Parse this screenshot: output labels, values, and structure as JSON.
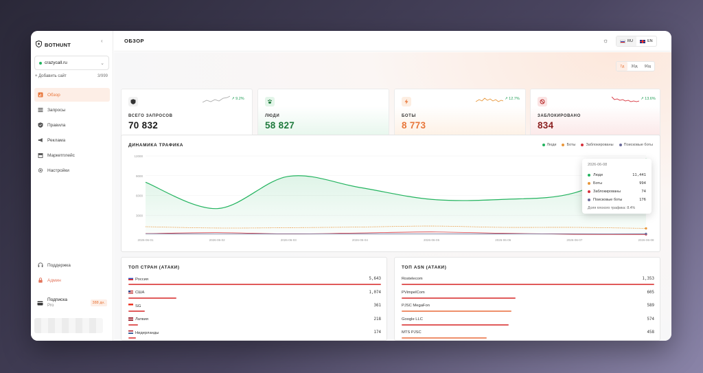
{
  "app": {
    "brand": "BOTHUNT",
    "page_title": "ОБЗОР",
    "collapse_icon": "chevron-left-icon"
  },
  "sidebar": {
    "site": "crazycall.ru",
    "add_site": "+ Добавить сайт",
    "site_count": "3/999",
    "items": [
      {
        "label": "Обзор",
        "icon": "chart-icon",
        "active": true
      },
      {
        "label": "Запросы",
        "icon": "list-icon",
        "active": false
      },
      {
        "label": "Правила",
        "icon": "shield-check-icon",
        "active": false
      },
      {
        "label": "Реклама",
        "icon": "megaphone-icon",
        "active": false
      },
      {
        "label": "Маркетплейс",
        "icon": "store-icon",
        "active": false
      },
      {
        "label": "Настройки",
        "icon": "gear-icon",
        "active": false
      }
    ],
    "bottom": [
      {
        "label": "Поддержка",
        "icon": "headset-icon"
      },
      {
        "label": "Админ",
        "icon": "lock-icon"
      }
    ],
    "subscription": {
      "title": "Подписка",
      "plan": "Pro",
      "days": "388 дн."
    }
  },
  "topbar": {
    "languages": [
      {
        "code": "RU",
        "active": true
      },
      {
        "code": "EN",
        "active": false
      }
    ]
  },
  "period": {
    "options": [
      "7д",
      "30д",
      "90д"
    ],
    "selected": "7д"
  },
  "stats": [
    {
      "label": "ВСЕГО ЗАПРОСОВ",
      "value": "70 832",
      "trend": "↗ 9.2%",
      "color": "#111111",
      "icon": "shield-icon"
    },
    {
      "label": "ЛЮДИ",
      "value": "58 827",
      "trend": "",
      "color": "#1e7a3c",
      "icon": "paw-icon"
    },
    {
      "label": "БОТЫ",
      "value": "8 773",
      "trend": "↗ 12.7%",
      "color": "#e8763a",
      "icon": "bolt-icon"
    },
    {
      "label": "ЗАБЛОКИРОВАНО",
      "value": "834",
      "trend": "↗ 13.6%",
      "color": "#8a1f1f",
      "icon": "block-icon"
    }
  ],
  "traffic": {
    "title": "ДИНАМИКА ТРАФИКА",
    "legend": [
      {
        "name": "Люди",
        "color": "#22b35e"
      },
      {
        "name": "Боты",
        "color": "#e8963a"
      },
      {
        "name": "Заблокированы",
        "color": "#d6303a"
      },
      {
        "name": "Поисковые боты",
        "color": "#6b6b9a"
      }
    ],
    "tooltip": {
      "date": "2026-06-08",
      "rows": [
        {
          "name": "Люди",
          "value": "11,441",
          "color": "#22b35e"
        },
        {
          "name": "Боты",
          "value": "994",
          "color": "#e8963a"
        },
        {
          "name": "Заблокированы",
          "value": "74",
          "color": "#d6303a"
        },
        {
          "name": "Поисковые боты",
          "value": "176",
          "color": "#6b6b9a"
        }
      ],
      "footer": "Доля плохого трафика: 8.4%"
    }
  },
  "chart_data": {
    "type": "line",
    "title": "ДИНАМИКА ТРАФИКА",
    "x": [
      "2026-06-01",
      "2026-06-02",
      "2026-06-03",
      "2026-06-04",
      "2026-06-05",
      "2026-06-06",
      "2026-06-07",
      "2026-06-08"
    ],
    "yticks": [
      3000,
      6000,
      9000,
      12000
    ],
    "ylim": [
      0,
      12000
    ],
    "series": [
      {
        "name": "Люди",
        "values": [
          8000,
          4000,
          8900,
          7200,
          5400,
          5400,
          6400,
          11441
        ],
        "color": "#22b35e",
        "fill": true
      },
      {
        "name": "Боты",
        "values": [
          1250,
          1050,
          1100,
          1200,
          1350,
          1150,
          1150,
          994
        ],
        "color": "#e8963a",
        "dashed": true
      },
      {
        "name": "Заблокированы",
        "values": [
          200,
          350,
          150,
          300,
          450,
          250,
          100,
          74
        ],
        "color": "#d6303a"
      },
      {
        "name": "Поисковые боты",
        "values": [
          180,
          170,
          160,
          175,
          170,
          165,
          170,
          176
        ],
        "color": "#6b6b9a"
      }
    ]
  },
  "countries": {
    "title": "ТОП СТРАН (АТАКИ)",
    "rows": [
      {
        "name": "Россия",
        "value": "5,643",
        "frac": 1.0,
        "flag": "ru"
      },
      {
        "name": "США",
        "value": "1,074",
        "frac": 0.19,
        "flag": "us"
      },
      {
        "name": "SG",
        "value": "361",
        "frac": 0.064,
        "flag": "sg"
      },
      {
        "name": "Латвия",
        "value": "218",
        "frac": 0.039,
        "flag": "lv"
      },
      {
        "name": "Нидерланды",
        "value": "174",
        "frac": 0.031,
        "flag": "nl"
      }
    ]
  },
  "asn": {
    "title": "ТОП ASN (АТАКИ)",
    "rows": [
      {
        "name": "Rostelecom",
        "value": "1,353",
        "frac": 1.0
      },
      {
        "name": "PVimpelCom",
        "value": "605",
        "frac": 0.45
      },
      {
        "name": "PJSC MegaFon",
        "value": "589",
        "frac": 0.435
      },
      {
        "name": "Google LLC",
        "value": "574",
        "frac": 0.424
      },
      {
        "name": "MTS PJSC",
        "value": "458",
        "frac": 0.338
      }
    ]
  }
}
